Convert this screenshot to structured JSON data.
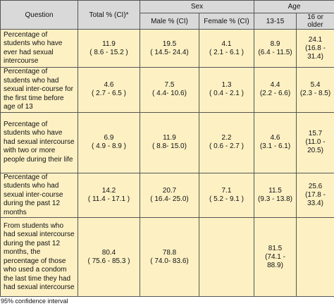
{
  "header": {
    "question": "Question",
    "total": "Total % (CI)*",
    "sex": "Sex",
    "male": "Male % (CI)",
    "female": "Female % (CI)",
    "age": "Age",
    "age_young": "13-15",
    "age_old": "16 or older"
  },
  "table": {
    "rows": [
      {
        "question": "Percentage of students who have ever had sexual intercourse",
        "cells": [
          {
            "value": "11.9",
            "ci": "( 8.6 - 15.2 )"
          },
          {
            "value": "19.5",
            "ci": "( 14.5- 24.4)"
          },
          {
            "value": "4.1",
            "ci": "( 2.1 - 6.1 )"
          },
          {
            "value": "8.9",
            "ci": "(6.4 - 11.5)"
          },
          {
            "value": "24.1",
            "ci": "(16.8 - 31.4)"
          }
        ]
      },
      {
        "question": "Percentage of students who had sexual inter-course for the first time before age of 13",
        "cells": [
          {
            "value": "4.6",
            "ci": "( 2.7 - 6.5 )"
          },
          {
            "value": "7.5",
            "ci": "( 4.4- 10.6)"
          },
          {
            "value": "1.3",
            "ci": "( 0.4 - 2.1 )"
          },
          {
            "value": "4.4",
            "ci": "(2.2 - 6.6)"
          },
          {
            "value": "5.4",
            "ci": "(2.3 - 8.5)"
          }
        ]
      },
      {
        "question": "Percentage of students who have had sexual intercourse with two or more people during their life",
        "cells": [
          {
            "value": "6.9",
            "ci": "( 4.9 - 8.9 )"
          },
          {
            "value": "11.9",
            "ci": "( 8.8- 15.0)"
          },
          {
            "value": "2.2",
            "ci": "( 0.6 - 2.7 )"
          },
          {
            "value": "4.6",
            "ci": "(3.1 - 6.1)"
          },
          {
            "value": "15.7",
            "ci": "(11.0 - 20.5)"
          }
        ]
      },
      {
        "question": "Percentage of students who had sexual inter-course during the past 12 months",
        "cells": [
          {
            "value": "14.2",
            "ci": "( 11.4 - 17.1 )"
          },
          {
            "value": "20.7",
            "ci": "( 16.4- 25.0)"
          },
          {
            "value": "7.1",
            "ci": "( 5.2 - 9.1 )"
          },
          {
            "value": "11.5",
            "ci": "(9.3 - 13.8)"
          },
          {
            "value": "25.6",
            "ci": "(17.8 - 33.4)"
          }
        ]
      },
      {
        "question": "From students who had sexual intercourse during the past 12 months, the percentage of those who used a condom the last time they had had sexual intercourse",
        "cells": [
          {
            "value": "80.4",
            "ci": "( 75.6 - 85.3 )"
          },
          {
            "value": "78.8",
            "ci": "( 74.0- 83.6)"
          },
          null,
          {
            "value": "81.5",
            "ci": "(74.1 - 88.9)"
          },
          null
        ]
      }
    ]
  },
  "footnote": "95% confidence interval"
}
